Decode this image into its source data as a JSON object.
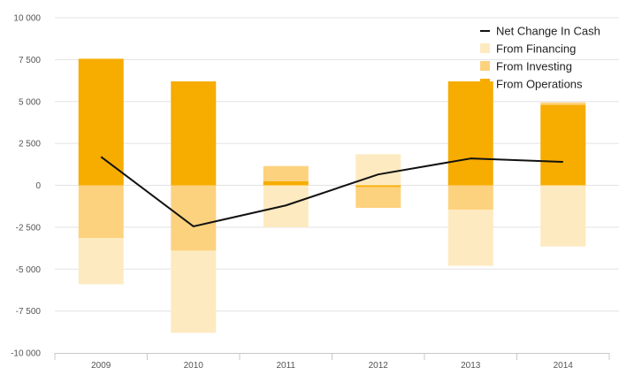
{
  "chart_data": {
    "type": "bar",
    "categories": [
      "2009",
      "2010",
      "2011",
      "2012",
      "2013",
      "2014"
    ],
    "series": [
      {
        "name": "From Operations",
        "kind": "stacked-bar",
        "color": "#f7ac00",
        "values": [
          7550,
          6200,
          250,
          -100,
          6200,
          4800
        ]
      },
      {
        "name": "From Investing",
        "kind": "stacked-bar",
        "color": "#fdd27e",
        "values": [
          -3150,
          -3900,
          900,
          -1250,
          -1450,
          150
        ]
      },
      {
        "name": "From Financing",
        "kind": "stacked-bar",
        "color": "#feeac0",
        "values": [
          -2750,
          -4900,
          -2500,
          1850,
          -3350,
          -3650
        ]
      },
      {
        "name": "Net Change In Cash",
        "kind": "line",
        "color": "#111111",
        "values": [
          1700,
          -2450,
          -1200,
          650,
          1600,
          1400
        ]
      }
    ],
    "y_ticks": [
      10000,
      7500,
      5000,
      2500,
      0,
      -2500,
      -5000,
      -7500,
      -10000
    ],
    "y_tick_labels": [
      "10 000",
      "7 500",
      "5 000",
      "2 500",
      "0",
      "-2 500",
      "-5 000",
      "-7 500",
      "-10 000"
    ],
    "ylim": [
      -10000,
      10000
    ],
    "grid": true,
    "legend": {
      "position": "top-right",
      "items": [
        "Net Change In Cash",
        "From Financing",
        "From Investing",
        "From Operations"
      ]
    },
    "title": "",
    "xlabel": "",
    "ylabel": ""
  }
}
